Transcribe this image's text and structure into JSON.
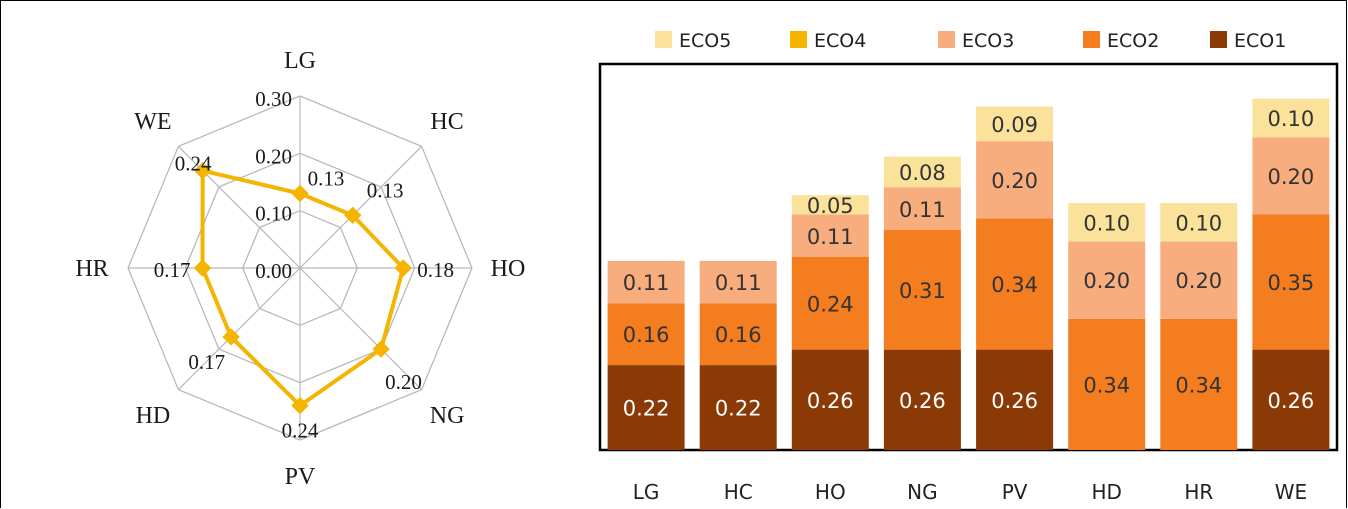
{
  "chart_data": [
    {
      "type": "radar",
      "categories": [
        "LG",
        "HC",
        "HO",
        "NG",
        "PV",
        "HD",
        "HR",
        "WE"
      ],
      "series": [
        {
          "values": [
            0.13,
            0.13,
            0.18,
            0.2,
            0.24,
            0.17,
            0.17,
            0.24
          ]
        }
      ],
      "rlim": [
        0.0,
        0.3
      ],
      "ticks": [
        0.0,
        0.1,
        0.2,
        0.3
      ],
      "tick_labels": [
        "0.00",
        "0.10",
        "0.20",
        "0.30"
      ],
      "value_labels": [
        "0.13",
        "0.13",
        "0.18",
        "0.20",
        "0.24",
        "0.17",
        "0.17",
        "0.24"
      ],
      "colors": {
        "series": "#f4b400",
        "grid": "#b9b9b9"
      }
    },
    {
      "type": "bar",
      "stacked": true,
      "categories": [
        "LG",
        "HC",
        "HO",
        "NG",
        "PV",
        "HD",
        "HR",
        "WE"
      ],
      "ylim": [
        0,
        1.0
      ],
      "legend_position": "top",
      "legend_order": [
        "ECO5",
        "ECO4",
        "ECO3",
        "ECO2",
        "ECO1"
      ],
      "series": [
        {
          "name": "ECO1",
          "color": "#8b3a06",
          "label_color": "#ffffff",
          "values": [
            0.22,
            0.22,
            0.26,
            0.26,
            0.26,
            0,
            0,
            0.26
          ]
        },
        {
          "name": "ECO2",
          "color": "#f47d20",
          "label_color": "#333333",
          "values": [
            0.16,
            0.16,
            0.24,
            0.31,
            0.34,
            0.34,
            0.34,
            0.35
          ]
        },
        {
          "name": "ECO3",
          "color": "#f8ad7f",
          "label_color": "#333333",
          "values": [
            0.11,
            0.11,
            0.11,
            0.11,
            0.2,
            0.2,
            0.2,
            0.2
          ]
        },
        {
          "name": "ECO4",
          "color": "#f4b400",
          "label_color": "#333333",
          "values": [
            0,
            0,
            0,
            0,
            0,
            0,
            0,
            0
          ]
        },
        {
          "name": "ECO5",
          "color": "#fbe29a",
          "label_color": "#333333",
          "values": [
            0,
            0,
            0.05,
            0.08,
            0.09,
            0.1,
            0.1,
            0.1
          ]
        }
      ]
    }
  ]
}
